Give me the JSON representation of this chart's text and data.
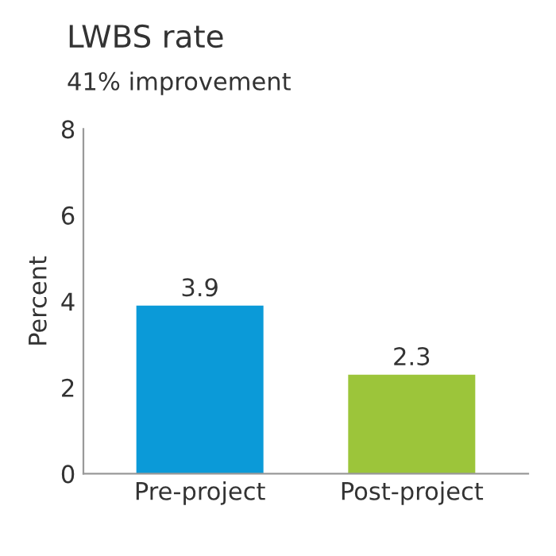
{
  "chart_data": {
    "type": "bar",
    "title": "LWBS rate",
    "subtitle": "41% improvement",
    "ylabel": "Percent",
    "categories": [
      "Pre-project",
      "Post-project"
    ],
    "values": [
      3.9,
      2.3
    ],
    "colors": [
      "#0b9ad8",
      "#9cc53a"
    ],
    "ylim": [
      0,
      8
    ],
    "yticks": [
      0,
      2,
      4,
      6,
      8
    ],
    "grid": false,
    "data_labels": true
  }
}
